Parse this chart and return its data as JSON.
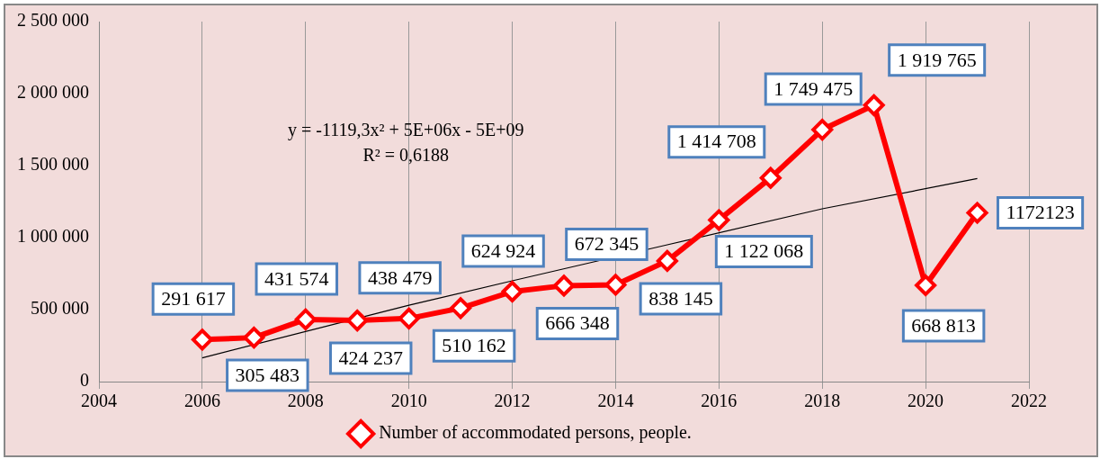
{
  "chart_data": {
    "type": "line",
    "x": [
      2006,
      2007,
      2008,
      2009,
      2010,
      2011,
      2012,
      2013,
      2014,
      2015,
      2016,
      2017,
      2018,
      2019,
      2020,
      2021
    ],
    "series": [
      {
        "name": "Number of accommodated persons, people.",
        "color": "#ff0000",
        "marker": "diamond",
        "values": [
          291617,
          305483,
          431574,
          424237,
          438479,
          510162,
          624924,
          666348,
          672345,
          838145,
          1122068,
          1414708,
          1749475,
          1919765,
          668813,
          1172123
        ],
        "value_labels": [
          "291 617",
          "305 483",
          "431 574",
          "424 237",
          "438 479",
          "510 162",
          "624 924",
          "666 348",
          "672 345",
          "838 145",
          "1 122 068",
          "1 414 708",
          "1 749 475",
          "1 919 765",
          "668 813",
          "1172123"
        ]
      },
      {
        "type": "line",
        "color": "#000000",
        "marker": "none",
        "x": [
          2006,
          2010,
          2012,
          2015,
          2018,
          2021
        ],
        "values": [
          165000,
          530000,
          700000,
          950000,
          1200000,
          1410000
        ]
      }
    ],
    "xlim": [
      2004,
      2022
    ],
    "xticks": [
      2004,
      2006,
      2008,
      2010,
      2012,
      2014,
      2016,
      2018,
      2020,
      2022
    ],
    "ylim": [
      0,
      2500000
    ],
    "yticks": [
      {
        "value": 0,
        "label": "0"
      },
      {
        "value": 500000,
        "label": "500 000"
      },
      {
        "value": 1000000,
        "label": "1 000 000"
      },
      {
        "value": 1500000,
        "label": "1 500 000"
      },
      {
        "value": 2000000,
        "label": "2 000 000"
      },
      {
        "value": 2500000,
        "label": "2 500 000"
      }
    ],
    "grid": "x",
    "legend": "bottom",
    "annotations": [
      "y = -1119,3x² + 5E+06x - 5E+09",
      "R² = 0,6188"
    ]
  }
}
